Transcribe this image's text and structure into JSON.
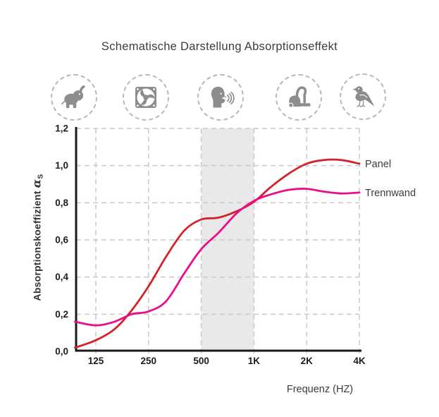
{
  "title": "Schematische Darstellung Absorptionseffekt",
  "icons": [
    {
      "name": "elephant-icon"
    },
    {
      "name": "fan-icon"
    },
    {
      "name": "speaking-head-icon"
    },
    {
      "name": "vacuum-cleaner-icon"
    },
    {
      "name": "bird-icon"
    }
  ],
  "ylabel": {
    "text": "Absorptionskoeffizient",
    "symbol": "α",
    "subscript": "S"
  },
  "xlabel": "Frequenz (HZ)",
  "colors": {
    "panel": "#d2232a",
    "trennwand": "#e90f8b",
    "band": "#e9e9e9",
    "grid": "#c9c9c9",
    "axis": "#1a1a1a",
    "icon_gray": "#8d8d8d",
    "text": "#3c3c3b",
    "tick_text": "#1c1c1c"
  },
  "chart_data": {
    "type": "line",
    "title": "Schematische Darstellung Absorptionseffekt",
    "xlabel": "Frequenz (HZ)",
    "ylabel": "Absorptionskoeffizient αS",
    "x_scale": "log2",
    "xlim": [
      95,
      4000
    ],
    "ylim": [
      0,
      1.2
    ],
    "grid": "dashed",
    "legend_position": "right-of-curves",
    "highlight_band": {
      "from": 500,
      "to": 1000
    },
    "x": [
      95,
      125,
      160,
      200,
      250,
      315,
      400,
      500,
      630,
      800,
      1000,
      1250,
      1600,
      2000,
      2500,
      3150,
      4000
    ],
    "series": [
      {
        "name": "Panel",
        "color": "#d2232a",
        "values": [
          0.02,
          0.06,
          0.12,
          0.22,
          0.35,
          0.51,
          0.65,
          0.71,
          0.72,
          0.755,
          0.805,
          0.885,
          0.96,
          1.01,
          1.03,
          1.03,
          1.01
        ]
      },
      {
        "name": "Trennwand",
        "color": "#e90f8b",
        "values": [
          0.16,
          0.14,
          0.16,
          0.2,
          0.215,
          0.27,
          0.42,
          0.55,
          0.64,
          0.745,
          0.81,
          0.845,
          0.87,
          0.875,
          0.86,
          0.85,
          0.855
        ]
      }
    ],
    "x_ticks": [
      {
        "v": 125,
        "label": "125"
      },
      {
        "v": 250,
        "label": "250"
      },
      {
        "v": 500,
        "label": "500"
      },
      {
        "v": 1000,
        "label": "1K"
      },
      {
        "v": 2000,
        "label": "2K"
      },
      {
        "v": 4000,
        "label": "4K"
      }
    ],
    "y_ticks": [
      {
        "v": 0.0,
        "label": "0,0"
      },
      {
        "v": 0.2,
        "label": "0,2"
      },
      {
        "v": 0.4,
        "label": "0,4"
      },
      {
        "v": 0.6,
        "label": "0,6"
      },
      {
        "v": 0.8,
        "label": "0,8"
      },
      {
        "v": 1.0,
        "label": "1,0"
      },
      {
        "v": 1.2,
        "label": "1,2"
      }
    ]
  }
}
